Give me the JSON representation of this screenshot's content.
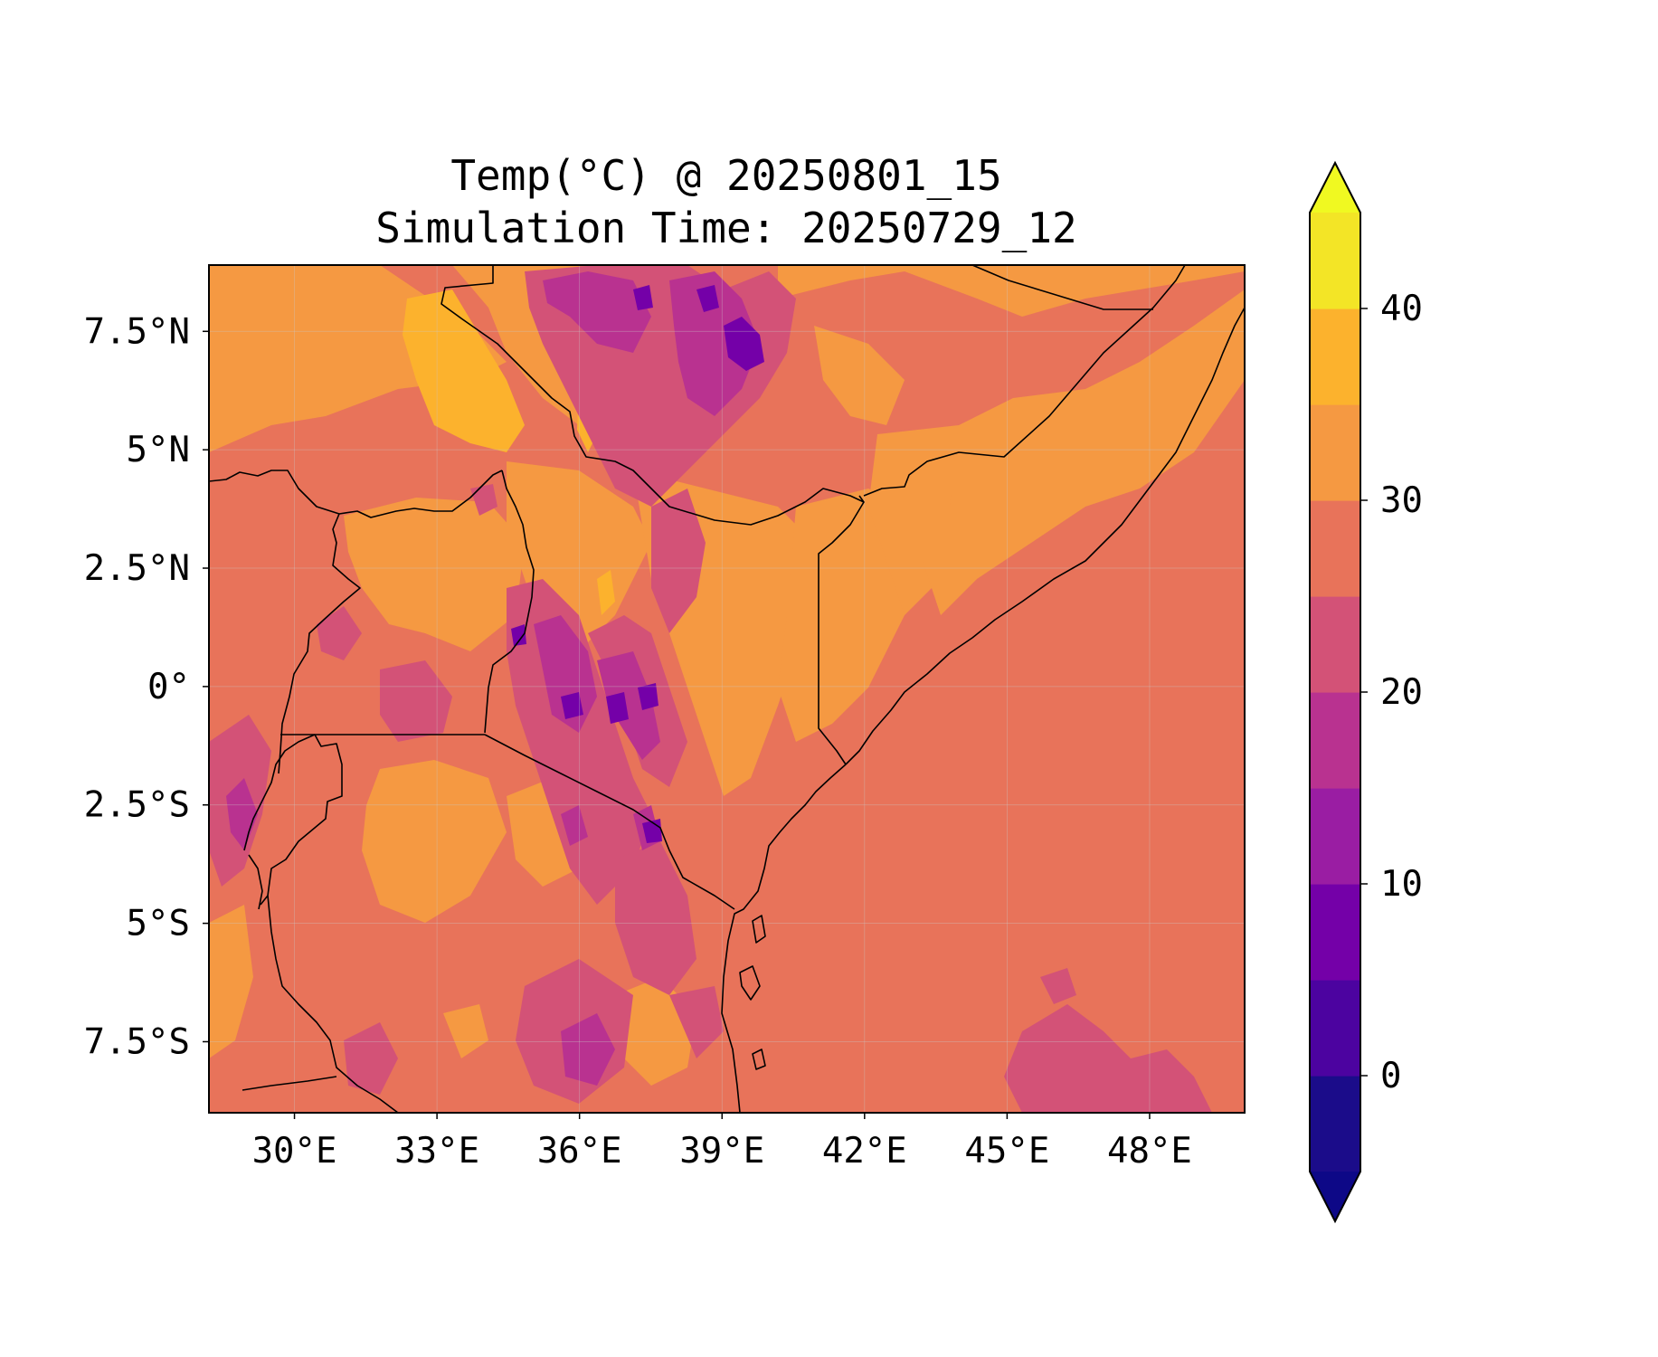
{
  "map": {
    "title_line1": "Temp(°C) @ 20250801_15",
    "title_line2": "Simulation Time: 20250729_12",
    "variable": "Temp(°C)",
    "extent": {
      "lon_min": 28.2,
      "lon_max": 50.0,
      "lat_min": -9.0,
      "lat_max": 8.9
    },
    "lon_ticks": [
      {
        "value": 30,
        "label": "30°E"
      },
      {
        "value": 33,
        "label": "33°E"
      },
      {
        "value": 36,
        "label": "36°E"
      },
      {
        "value": 39,
        "label": "39°E"
      },
      {
        "value": 42,
        "label": "42°E"
      },
      {
        "value": 45,
        "label": "45°E"
      },
      {
        "value": 48,
        "label": "48°E"
      }
    ],
    "lat_ticks": [
      {
        "value": 7.5,
        "label": "7.5°N"
      },
      {
        "value": 5,
        "label": "5°N"
      },
      {
        "value": 2.5,
        "label": "2.5°N"
      },
      {
        "value": 0,
        "label": "0°"
      },
      {
        "value": -2.5,
        "label": "2.5°S"
      },
      {
        "value": -5,
        "label": "5°S"
      },
      {
        "value": -7.5,
        "label": "7.5°S"
      }
    ],
    "grid": true
  },
  "colorbar": {
    "levels": [
      -5,
      0,
      5,
      10,
      15,
      20,
      25,
      30,
      35,
      40,
      45
    ],
    "colors": [
      "#1b0c8a",
      "#4c03a0",
      "#7400a8",
      "#9a1da3",
      "#b93290",
      "#d35277",
      "#e8735a",
      "#f59942",
      "#fcb22d",
      "#f3e526"
    ],
    "under_color": "#0d0887",
    "over_color": "#f0f921",
    "extend": "both",
    "ticks": [
      {
        "value": 0,
        "label": "0"
      },
      {
        "value": 10,
        "label": "10"
      },
      {
        "value": 20,
        "label": "20"
      },
      {
        "value": 30,
        "label": "30"
      },
      {
        "value": 40,
        "label": "40"
      }
    ]
  },
  "palette": {
    "ocean": "#e8735a",
    "warm": "#f59942",
    "hot": "#fcb22d",
    "cool": "#d35277",
    "cold": "#b93290",
    "colder": "#9a1da3",
    "coldest": "#7400a8"
  }
}
